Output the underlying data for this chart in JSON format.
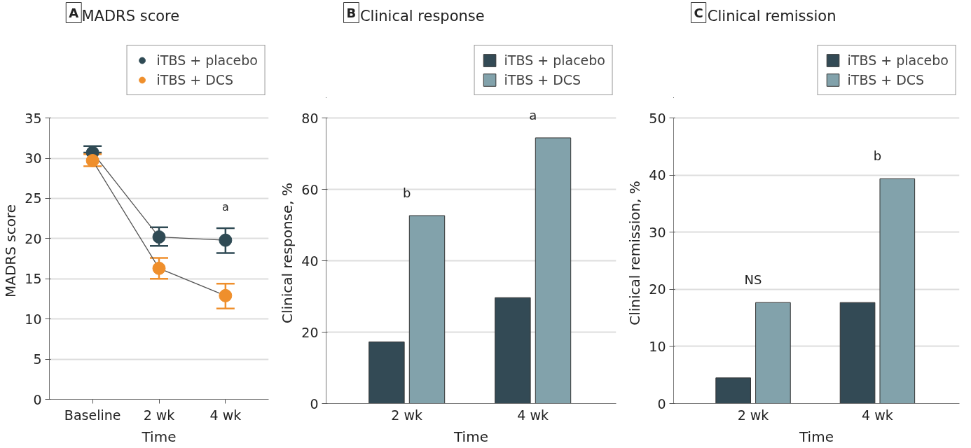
{
  "chart_data": [
    {
      "type": "line",
      "title": "MADRS score",
      "xlabel": "Time",
      "ylabel": "MADRS score",
      "categories": [
        "Baseline",
        "2 wk",
        "4 wk"
      ],
      "ylim": [
        0,
        35
      ],
      "yticks": [
        0,
        5,
        10,
        15,
        20,
        25,
        30,
        35
      ],
      "grid": "y",
      "legend": "top right",
      "marker": "circle",
      "series": [
        {
          "name": "iTBS + placebo",
          "color": "#2f4a54",
          "values": [
            30.7,
            20.2,
            19.8
          ],
          "errors": [
            [
              30.7,
              31.5
            ],
            [
              19.1,
              21.4
            ],
            [
              18.2,
              21.3
            ]
          ]
        },
        {
          "name": "iTBS + DCS",
          "color": "#ef8f2c",
          "values": [
            29.7,
            16.3,
            12.9
          ],
          "errors": [
            [
              29.0,
              30.5
            ],
            [
              15.0,
              17.6
            ],
            [
              11.3,
              14.4
            ]
          ]
        }
      ],
      "annotations": [
        "A",
        {
          "text": "a",
          "x": "4 wk",
          "y": 19.8
        }
      ]
    },
    {
      "type": "bar",
      "title": "Clinical response",
      "xlabel": "Time",
      "ylabel": "Clinical response, %",
      "categories": [
        "2 wk",
        "4 wk"
      ],
      "ylim": [
        0,
        80
      ],
      "yticks": [
        0,
        20,
        40,
        60,
        80
      ],
      "grid": "y",
      "legend": "top right",
      "series": [
        {
          "name": "iTBS + placebo",
          "color": "#334a55",
          "values": [
            17.3,
            29.7
          ]
        },
        {
          "name": "iTBS + DCS",
          "color": "#82a2ab",
          "values": [
            52.7,
            74.5
          ]
        }
      ],
      "annotations": [
        "B",
        "b",
        "a"
      ]
    },
    {
      "type": "bar",
      "title": "Clinical remission",
      "xlabel": "Time",
      "ylabel": "Clinical remission, %",
      "categories": [
        "2 wk",
        "4 wk"
      ],
      "ylim": [
        0,
        50
      ],
      "yticks": [
        0,
        10,
        20,
        30,
        40,
        50
      ],
      "grid": "y",
      "legend": "top right",
      "series": [
        {
          "name": "iTBS + placebo",
          "color": "#334a55",
          "values": [
            4.5,
            17.7
          ]
        },
        {
          "name": "iTBS + DCS",
          "color": "#82a2ab",
          "values": [
            17.7,
            39.4
          ]
        }
      ],
      "annotations": [
        "C",
        "NS",
        "b"
      ]
    }
  ]
}
